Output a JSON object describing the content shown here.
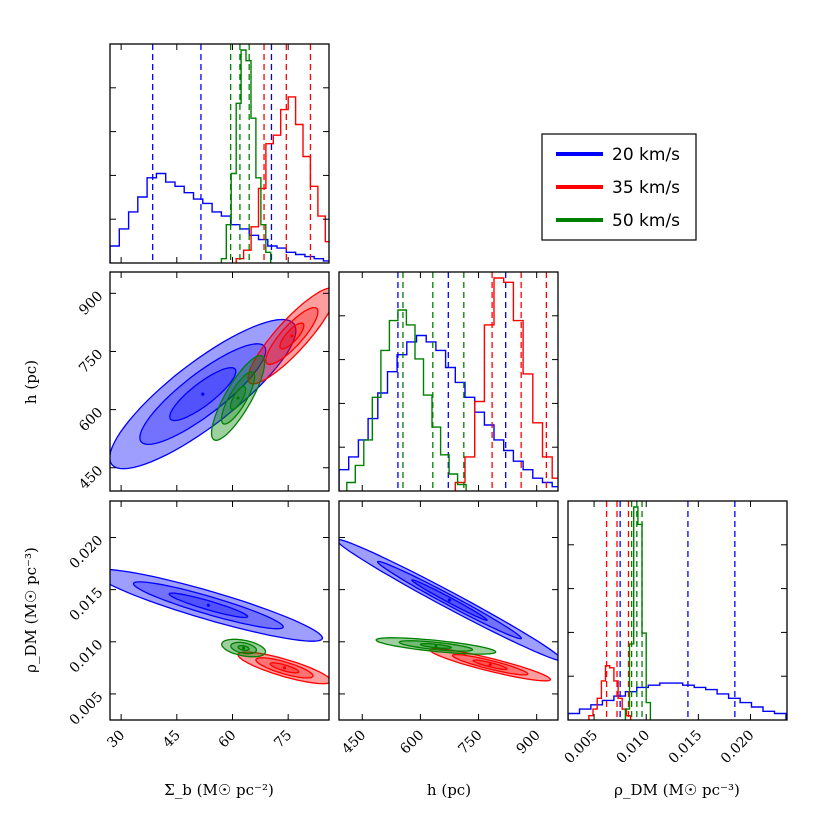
{
  "chart_data": {
    "type": "corner",
    "colors": {
      "blue": "#0000ff",
      "red": "#ff0000",
      "green": "#008000"
    },
    "legend": [
      {
        "label": "20 km/s",
        "color": "#0000ff"
      },
      {
        "label": "35 km/s",
        "color": "#ff0000"
      },
      {
        "label": "50 km/s",
        "color": "#008000"
      }
    ],
    "axis_labels": {
      "sigma_b": "Σ_b (M☉ pc⁻²)",
      "h": "h (pc)",
      "rho_dm": "ρ_DM (M☉ pc⁻³)"
    },
    "ticks": {
      "sigma_b": [
        "30",
        "45",
        "60",
        "75"
      ],
      "h": [
        "450",
        "600",
        "750",
        "900"
      ],
      "rho_dm": [
        "0.005",
        "0.010",
        "0.015",
        "0.020"
      ]
    },
    "ranges": {
      "sigma_b": [
        27,
        86
      ],
      "h": [
        390,
        955
      ],
      "rho_dm": [
        0.0025,
        0.0235
      ]
    },
    "histograms": {
      "sigma_b": [
        {
          "series": "20 km/s",
          "color": "#0000ff",
          "x0": 27,
          "bin": 2.5,
          "values": [
            0.08,
            0.16,
            0.24,
            0.31,
            0.4,
            0.42,
            0.38,
            0.36,
            0.33,
            0.3,
            0.28,
            0.24,
            0.22,
            0.18,
            0.16,
            0.13,
            0.11,
            0.08,
            0.07,
            0.05,
            0.04,
            0.03,
            0.02,
            0.01
          ],
          "quantiles": [
            38.5,
            51.5,
            70.5
          ]
        },
        {
          "series": "35 km/s",
          "color": "#ff0000",
          "x0": 61,
          "bin": 2,
          "values": [
            0.02,
            0.06,
            0.17,
            0.35,
            0.56,
            0.6,
            0.72,
            0.78,
            0.65,
            0.5,
            0.36,
            0.22,
            0.1
          ],
          "quantiles": [
            68.5,
            74.5,
            81.0
          ]
        },
        {
          "series": "50 km/s",
          "color": "#008000",
          "x0": 57,
          "bin": 1.33,
          "values": [
            0.02,
            0.18,
            0.42,
            0.75,
            1.0,
            0.95,
            0.68,
            0.4,
            0.18,
            0.05
          ],
          "quantiles": [
            59.5,
            62.0,
            64.5
          ]
        }
      ],
      "h": [
        {
          "series": "20 km/s",
          "color": "#0000ff",
          "x0": 390,
          "bin": 25,
          "values": [
            0.1,
            0.16,
            0.24,
            0.34,
            0.46,
            0.56,
            0.64,
            0.7,
            0.73,
            0.7,
            0.66,
            0.58,
            0.51,
            0.44,
            0.37,
            0.31,
            0.24,
            0.19,
            0.14,
            0.1,
            0.06,
            0.04,
            0.02
          ],
          "quantiles": [
            542,
            672,
            820
          ]
        },
        {
          "series": "35 km/s",
          "color": "#ff0000",
          "x0": 690,
          "bin": 25,
          "values": [
            0.04,
            0.16,
            0.42,
            0.78,
            1.0,
            0.98,
            0.8,
            0.55,
            0.32,
            0.16,
            0.06
          ],
          "quantiles": [
            785,
            860,
            925
          ]
        },
        {
          "series": "50 km/s",
          "color": "#008000",
          "x0": 410,
          "bin": 22,
          "values": [
            0.04,
            0.12,
            0.24,
            0.44,
            0.66,
            0.8,
            0.85,
            0.78,
            0.62,
            0.45,
            0.3,
            0.17,
            0.08,
            0.03
          ],
          "quantiles": [
            555,
            632,
            712
          ]
        }
      ],
      "rho_dm": [
        {
          "series": "20 km/s",
          "color": "#0000ff",
          "x0": 0.0025,
          "bin": 0.0011,
          "values": [
            0.03,
            0.05,
            0.07,
            0.09,
            0.11,
            0.13,
            0.15,
            0.16,
            0.17,
            0.17,
            0.16,
            0.15,
            0.14,
            0.12,
            0.1,
            0.08,
            0.06,
            0.04,
            0.03
          ],
          "quantiles": [
            0.0075,
            0.014,
            0.0185
          ]
        },
        {
          "series": "35 km/s",
          "color": "#ff0000",
          "x0": 0.0045,
          "bin": 0.0004,
          "values": [
            0.02,
            0.05,
            0.1,
            0.18,
            0.25,
            0.24,
            0.18,
            0.1,
            0.05,
            0.02
          ],
          "quantiles": [
            0.0062,
            0.0072,
            0.0083
          ]
        },
        {
          "series": "50 km/s",
          "color": "#008000",
          "x0": 0.008,
          "bin": 0.0004,
          "values": [
            0.05,
            0.35,
            0.98,
            0.9,
            0.4,
            0.08
          ],
          "quantiles": [
            0.0086,
            0.0091,
            0.0096
          ]
        }
      ]
    },
    "contours": {
      "h_vs_sigma": [
        {
          "series": "20 km/s",
          "color": "#0000ff",
          "center": [
            52,
            640
          ],
          "axis": [
            0.79,
            0.61
          ],
          "half_lengths": [
            [
              31,
              8.5
            ],
            [
              21,
              5.5
            ],
            [
              11,
              3
            ]
          ]
        },
        {
          "series": "35 km/s",
          "color": "#ff0000",
          "center": [
            76,
            790
          ],
          "axis": [
            0.67,
            0.74
          ],
          "half_lengths": [
            [
              17,
              4.2
            ],
            [
              10,
              2.8
            ],
            [
              4.5,
              1.5
            ]
          ]
        },
        {
          "series": "50 km/s",
          "color": "#008000",
          "center": [
            61.5,
            630
          ],
          "axis": [
            0.5,
            0.87
          ],
          "half_lengths": [
            [
              13,
              3.5
            ],
            [
              8,
              2.3
            ],
            [
              3.5,
              1.2
            ]
          ]
        }
      ],
      "rho_vs_sigma": [
        {
          "series": "20 km/s",
          "color": "#0000ff",
          "center": [
            53.5,
            0.0135
          ],
          "axis": [
            0.96,
            -0.28
          ],
          "half_lengths": [
            [
              32,
              3.8
            ],
            [
              21,
              2.4
            ],
            [
              11,
              1.2
            ]
          ]
        },
        {
          "series": "35 km/s",
          "color": "#ff0000",
          "center": [
            74,
            0.0075
          ],
          "axis": [
            0.96,
            -0.28
          ],
          "half_lengths": [
            [
              13,
              2.3
            ],
            [
              8,
              1.6
            ],
            [
              4,
              0.8
            ]
          ]
        },
        {
          "series": "50 km/s",
          "color": "#008000",
          "center": [
            63,
            0.0094
          ],
          "axis": [
            0.98,
            -0.19
          ],
          "half_lengths": [
            [
              6,
              2.1
            ],
            [
              3.5,
              1.4
            ],
            [
              1.5,
              0.6
            ]
          ]
        }
      ],
      "rho_vs_h": [
        {
          "series": "20 km/s",
          "color": "#0000ff",
          "center": [
            675,
            0.014
          ],
          "axis": [
            0.88,
            -0.47
          ],
          "half_lengths": [
            [
              330,
              38
            ],
            [
              210,
              24
            ],
            [
              110,
              12
            ]
          ]
        },
        {
          "series": "35 km/s",
          "color": "#ff0000",
          "center": [
            780,
            0.0078
          ],
          "axis": [
            0.97,
            -0.24
          ],
          "half_lengths": [
            [
              160,
              30
            ],
            [
              100,
              20
            ],
            [
              45,
              10
            ]
          ]
        },
        {
          "series": "50 km/s",
          "color": "#008000",
          "center": [
            640,
            0.0096
          ],
          "axis": [
            0.99,
            -0.1
          ],
          "half_lengths": [
            [
              155,
              26
            ],
            [
              95,
              17
            ],
            [
              40,
              8
            ]
          ]
        }
      ]
    }
  }
}
